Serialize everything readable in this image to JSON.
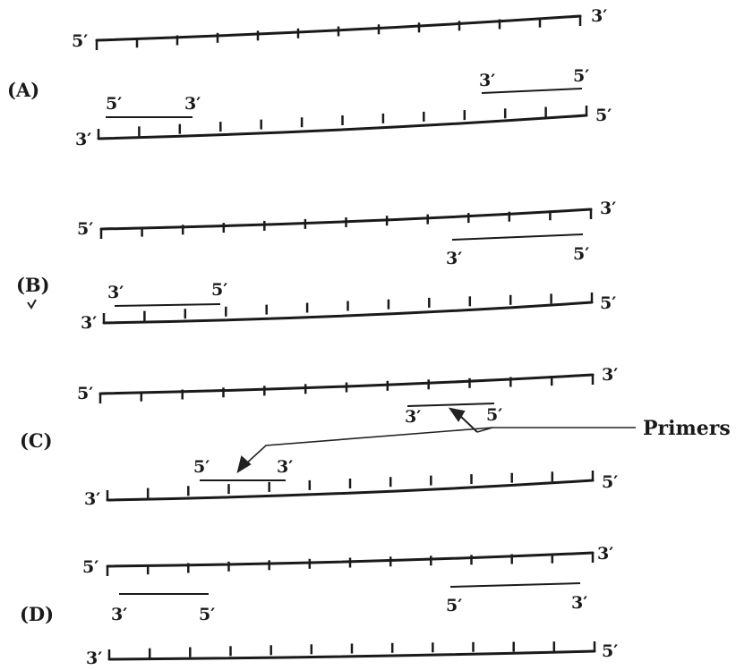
{
  "options": [
    {
      "label": "(A)",
      "top_strand": {
        "left_end": "5′",
        "right_end": "3′"
      },
      "bottom_strand": {
        "left_end": "3′",
        "right_end": "5′"
      },
      "primers": [
        {
          "left_end": "3′",
          "right_end": "5′"
        },
        {
          "left_end": "5′",
          "right_end": "3′"
        }
      ]
    },
    {
      "label": "(B)",
      "top_strand": {
        "left_end": "5′",
        "right_end": "3′"
      },
      "bottom_strand": {
        "left_end": "3′",
        "right_end": "5′"
      },
      "primers": [
        {
          "left_end": "3′",
          "right_end": "5′"
        },
        {
          "left_end": "3′",
          "right_end": "5′"
        }
      ]
    },
    {
      "label": "(C)",
      "top_strand": {
        "left_end": "5′",
        "right_end": "3′"
      },
      "bottom_strand": {
        "left_end": "3′",
        "right_end": "5′"
      },
      "primers": [
        {
          "left_end": "3′",
          "right_end": "5′"
        },
        {
          "left_end": "5′",
          "right_end": "3′"
        }
      ]
    },
    {
      "label": "(D)",
      "top_strand": {
        "left_end": "5′",
        "right_end": "3′"
      },
      "bottom_strand": {
        "left_end": "3′",
        "right_end": "5′"
      },
      "primers": [
        {
          "left_end": "3′",
          "right_end": "5′"
        },
        {
          "left_end": "5′",
          "right_end": "3′"
        }
      ]
    }
  ],
  "callout": {
    "text": "Primers"
  }
}
